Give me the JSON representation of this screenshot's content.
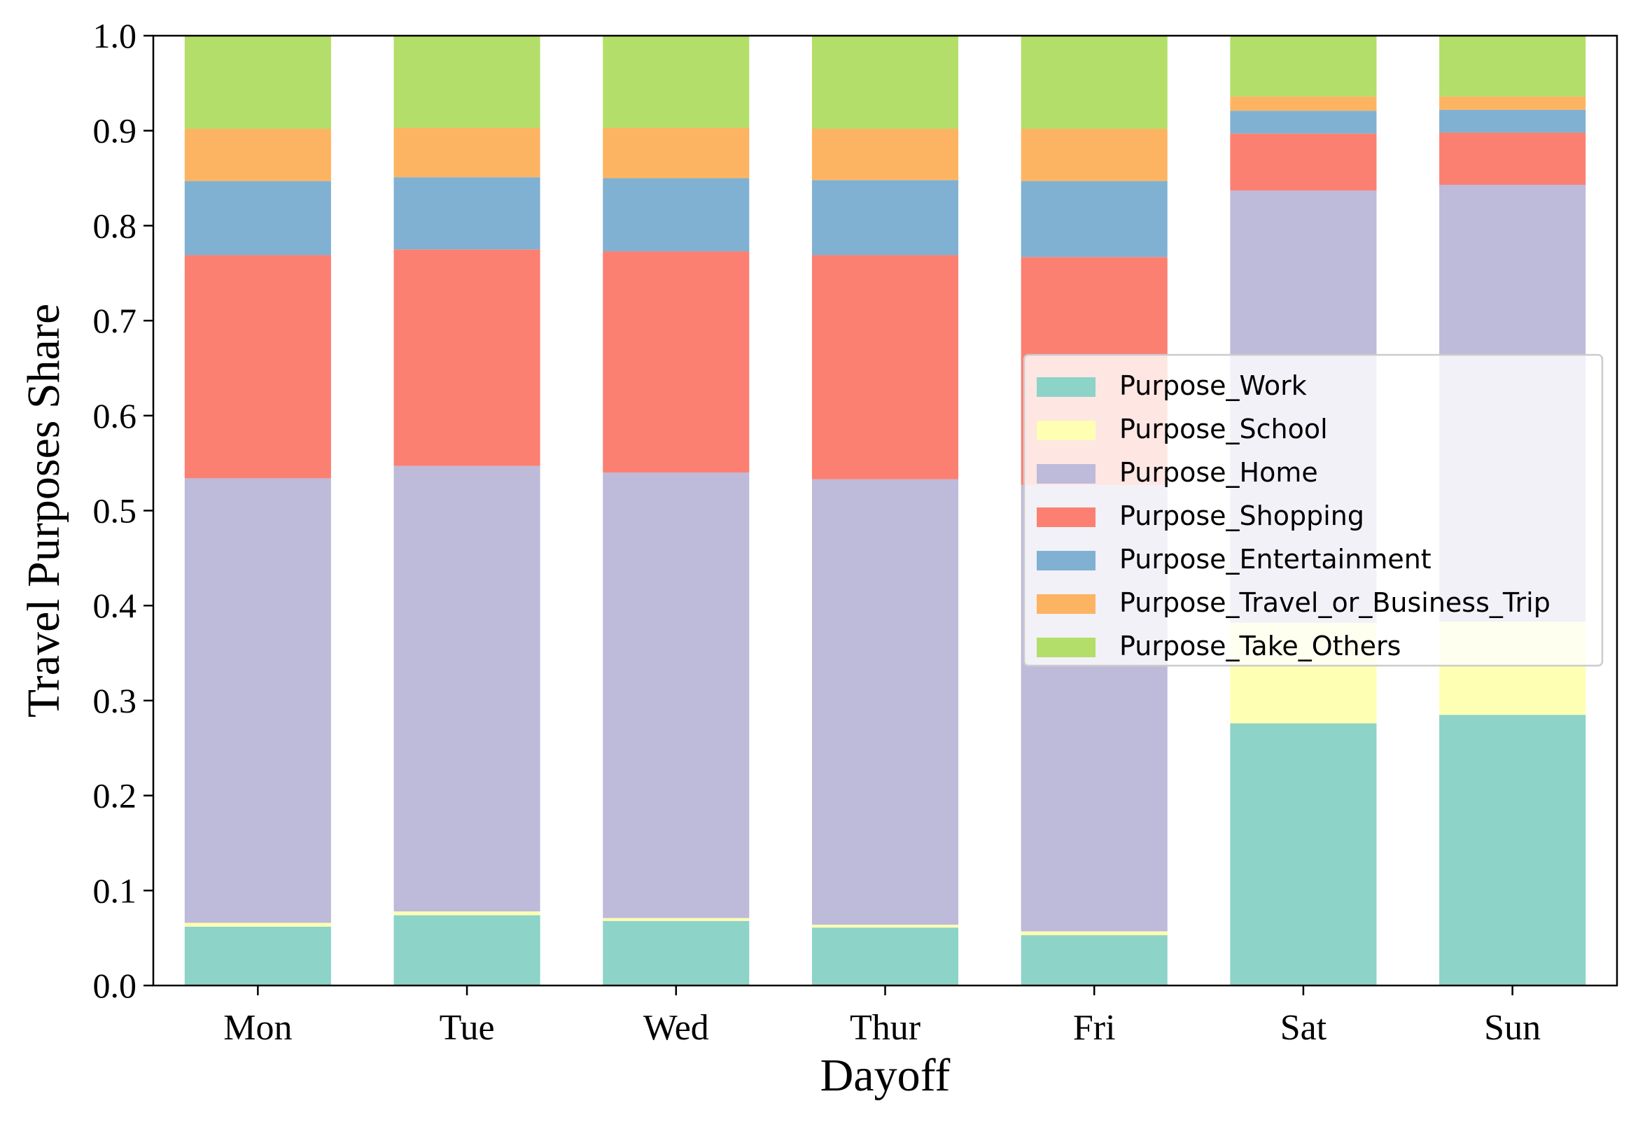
{
  "chart_data": {
    "type": "bar",
    "stacked": true,
    "title": "",
    "xlabel": "Dayoff",
    "ylabel": "Travel Purposes Share",
    "ylim": [
      0,
      1.0
    ],
    "yticks": [
      "0.0",
      "0.1",
      "0.2",
      "0.3",
      "0.4",
      "0.5",
      "0.6",
      "0.7",
      "0.8",
      "0.9",
      "1.0"
    ],
    "categories": [
      "Mon",
      "Tue",
      "Wed",
      "Thur",
      "Fri",
      "Sat",
      "Sun"
    ],
    "legend_position": "center-right",
    "grid": false,
    "series": [
      {
        "name": "Purpose_Work",
        "color": "#8dd3c7",
        "values": [
          0.062,
          0.074,
          0.068,
          0.061,
          0.053,
          0.276,
          0.285
        ]
      },
      {
        "name": "Purpose_School",
        "color": "#ffffb3",
        "values": [
          0.004,
          0.004,
          0.003,
          0.003,
          0.004,
          0.106,
          0.098
        ]
      },
      {
        "name": "Purpose_Home",
        "color": "#bebada",
        "values": [
          0.468,
          0.469,
          0.469,
          0.469,
          0.47,
          0.455,
          0.46
        ]
      },
      {
        "name": "Purpose_Shopping",
        "color": "#fb8072",
        "values": [
          0.235,
          0.228,
          0.233,
          0.236,
          0.24,
          0.06,
          0.055
        ]
      },
      {
        "name": "Purpose_Entertainment",
        "color": "#80b1d3",
        "values": [
          0.078,
          0.076,
          0.077,
          0.079,
          0.08,
          0.024,
          0.024
        ]
      },
      {
        "name": "Purpose_Travel_or_Business_Trip",
        "color": "#fdb462",
        "values": [
          0.055,
          0.052,
          0.053,
          0.054,
          0.055,
          0.015,
          0.014
        ]
      },
      {
        "name": "Purpose_Take_Others",
        "color": "#b3de69",
        "values": [
          0.098,
          0.097,
          0.097,
          0.098,
          0.098,
          0.064,
          0.064
        ]
      }
    ]
  }
}
